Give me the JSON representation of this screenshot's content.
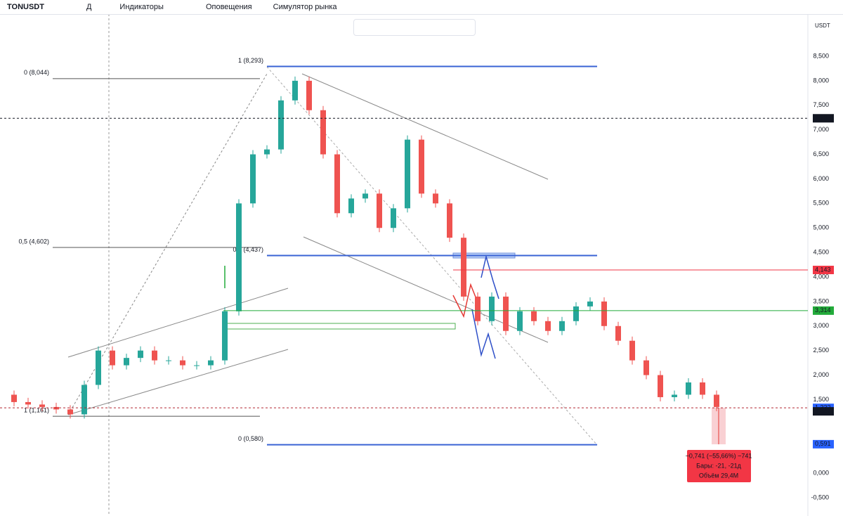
{
  "toolbar": {
    "symbol": "TONUSDT",
    "interval": "Д",
    "indicators": "Индикаторы",
    "alerts": "Оповещения",
    "replay": "Симулятор рынка"
  },
  "currency": "USDT",
  "chart_data": {
    "type": "candlestick",
    "closes": [
      1.6,
      1.45,
      1.4,
      1.35,
      1.3,
      1.2,
      1.8,
      2.5,
      2.2,
      2.35,
      2.5,
      2.3,
      2.3,
      2.2,
      2.2,
      2.3,
      3.3,
      5.5,
      6.5,
      6.6,
      7.6,
      8.0,
      7.4,
      6.5,
      5.3,
      5.6,
      5.7,
      5.0,
      5.4,
      6.8,
      5.7,
      5.5,
      4.8,
      3.6,
      3.1,
      3.6,
      2.9,
      3.3,
      3.1,
      2.9,
      3.1,
      3.4,
      3.5,
      3.0,
      2.7,
      2.3,
      2.0,
      1.55,
      1.6,
      1.85,
      1.6,
      1.35
    ],
    "up_color": "#26a69a",
    "down_color": "#ef5350",
    "ylim": [
      -0.5,
      8.5
    ],
    "yticks": [
      {
        "value": 8.5,
        "label": "8,500"
      },
      {
        "value": 8,
        "label": "8,000"
      },
      {
        "value": 7.5,
        "label": "7,500"
      },
      {
        "value": 7,
        "label": "7,000"
      },
      {
        "value": 6.5,
        "label": "6,500"
      },
      {
        "value": 6,
        "label": "6,000"
      },
      {
        "value": 5.5,
        "label": "5,500"
      },
      {
        "value": 5,
        "label": "5,000"
      },
      {
        "value": 4.5,
        "label": "4,500"
      },
      {
        "value": 4,
        "label": "4,000"
      },
      {
        "value": 3.5,
        "label": "3,500"
      },
      {
        "value": 3,
        "label": "3,000"
      },
      {
        "value": 2.5,
        "label": "2,500"
      },
      {
        "value": 2,
        "label": "2,000"
      },
      {
        "value": 1.5,
        "label": "1,500"
      },
      {
        "value": 0,
        "label": "0,000"
      },
      {
        "value": -0.5,
        "label": "-0,500"
      }
    ],
    "fib_left": [
      {
        "value": 8.044,
        "label": "0 (8,044)"
      },
      {
        "value": 4.602,
        "label": "0,5 (4,602)"
      },
      {
        "value": 1.161,
        "label": "1 (1,161)"
      }
    ],
    "fib_right": [
      {
        "value": 8.293,
        "label": "1 (8,293)"
      },
      {
        "value": 4.437,
        "label": "0,5 (4,437)"
      },
      {
        "value": 0.58,
        "label": "0 (0,580)"
      }
    ],
    "price_tags": [
      {
        "value": 7.235,
        "label": "7,235",
        "color": "#131722"
      },
      {
        "value": 4.143,
        "label": "4,143",
        "color": "#f23645"
      },
      {
        "value": 3.314,
        "label": "3,314",
        "color": "#22ab3a"
      },
      {
        "value": 1.332,
        "label": "1,332",
        "color": "#2962ff"
      },
      {
        "value": 1.347,
        "label": "1,347",
        "color": "#131722"
      },
      {
        "value": 0.591,
        "label": "0,591",
        "color": "#2962ff"
      }
    ],
    "measure": [
      "−0,741 (−55,66%) −741",
      "Бары: -21, -21д",
      "Объём 29,4M"
    ]
  }
}
